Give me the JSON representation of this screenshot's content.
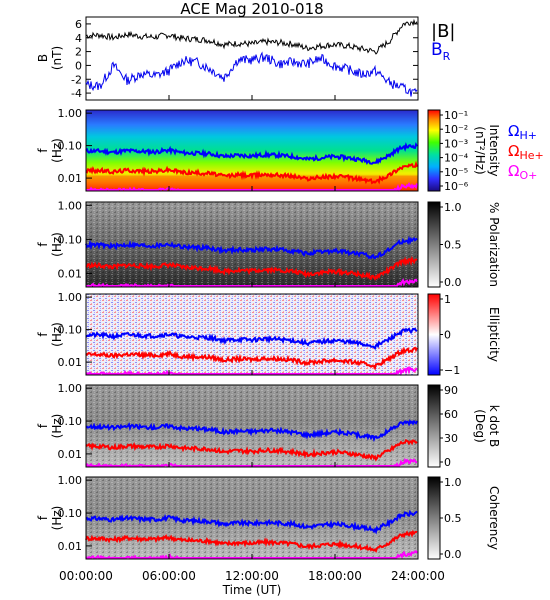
{
  "title": "ACE Mag 2010-018",
  "chart_data": [
    {
      "type": "line",
      "panel": "magnetic-field",
      "ylabel": "B",
      "yunit": "(nT)",
      "ylim": [
        -5,
        7
      ],
      "yticks": [
        6,
        4,
        2,
        0,
        -2,
        -4
      ],
      "series": [
        {
          "name": "|B|",
          "color": "#000000",
          "x": [
            0,
            1,
            2,
            3,
            4,
            5,
            6,
            7,
            8,
            9,
            10,
            11,
            12,
            13,
            14,
            15,
            16,
            17,
            18,
            19,
            20,
            21,
            22,
            23,
            24
          ],
          "y": [
            4.3,
            4.4,
            4.0,
            4.5,
            4.2,
            4.1,
            4.4,
            3.9,
            3.8,
            3.6,
            3.0,
            3.2,
            3.1,
            3.4,
            3.3,
            3.1,
            2.5,
            2.8,
            3.0,
            2.8,
            2.4,
            2.0,
            3.5,
            6.0,
            6.5
          ]
        },
        {
          "name": "B",
          "subscript": "R",
          "color": "#0000ee",
          "x": [
            0,
            1,
            2,
            3,
            4,
            5,
            6,
            7,
            8,
            9,
            10,
            11,
            12,
            13,
            14,
            15,
            16,
            17,
            18,
            19,
            20,
            21,
            22,
            23,
            24
          ],
          "y": [
            -2.8,
            -3.0,
            0.0,
            -2.2,
            -1.2,
            -1.5,
            -0.8,
            0.7,
            0.5,
            -0.5,
            -1.8,
            0.8,
            0.8,
            1.2,
            0.2,
            0.5,
            0.2,
            1.0,
            0.0,
            -0.6,
            -1.3,
            -0.8,
            -2.5,
            -3.3,
            -4.2
          ]
        }
      ]
    },
    {
      "type": "heatmap",
      "panel": "intensity",
      "ylabel": "f",
      "yunit": "(Hz)",
      "yscale": "log",
      "ylim": [
        0.004,
        1.0
      ],
      "yticks": [
        "1.00",
        "0.10",
        "0.01"
      ],
      "colorbar": {
        "label": "Intensity",
        "unit": "(nT²/Hz)",
        "scale": "log",
        "ticks": [
          "10⁻¹",
          "10⁻²",
          "10⁻³",
          "10⁻⁴",
          "10⁻⁵",
          "10⁻⁶"
        ],
        "colormap": "rainbow"
      }
    },
    {
      "type": "heatmap",
      "panel": "polarization",
      "ylabel": "f",
      "yunit": "(Hz)",
      "yscale": "log",
      "colorbar": {
        "label": "% Polarization",
        "ticks": [
          "1.0",
          "0.5",
          "0.0"
        ],
        "colormap": "grayscale"
      }
    },
    {
      "type": "heatmap",
      "panel": "ellipticity",
      "ylabel": "f",
      "yunit": "(Hz)",
      "yscale": "log",
      "colorbar": {
        "label": "Ellipticity",
        "ticks": [
          "1",
          "0",
          "−1"
        ],
        "colormap": "blue-white-red"
      }
    },
    {
      "type": "heatmap",
      "panel": "wave-normal-angle",
      "ylabel": "f",
      "yunit": "(Hz)",
      "yscale": "log",
      "colorbar": {
        "label": "k dot B",
        "unit": "(Deg)",
        "ticks": [
          "90",
          "60",
          "30",
          "0"
        ],
        "colormap": "grayscale"
      }
    },
    {
      "type": "heatmap",
      "panel": "coherency",
      "ylabel": "f",
      "yunit": "(Hz)",
      "yscale": "log",
      "colorbar": {
        "label": "Coherency",
        "ticks": [
          "1.0",
          "0.5",
          "0.0"
        ],
        "colormap": "grayscale"
      }
    }
  ],
  "gyro_lines": [
    {
      "name": "H+",
      "color": "#0000ff",
      "x": [
        0,
        1,
        2,
        3,
        4,
        5,
        6,
        7,
        8,
        9,
        10,
        11,
        12,
        13,
        14,
        15,
        16,
        17,
        18,
        19,
        20,
        21,
        22,
        23,
        24
      ],
      "f": [
        0.068,
        0.068,
        0.062,
        0.07,
        0.066,
        0.064,
        0.072,
        0.06,
        0.058,
        0.056,
        0.046,
        0.05,
        0.048,
        0.052,
        0.05,
        0.046,
        0.038,
        0.042,
        0.046,
        0.042,
        0.036,
        0.03,
        0.05,
        0.09,
        0.098
      ]
    },
    {
      "name": "He+",
      "color": "#ff0000",
      "x": [
        0,
        1,
        2,
        3,
        4,
        5,
        6,
        7,
        8,
        9,
        10,
        11,
        12,
        13,
        14,
        15,
        16,
        17,
        18,
        19,
        20,
        21,
        22,
        23,
        24
      ],
      "f": [
        0.017,
        0.017,
        0.0155,
        0.0175,
        0.0165,
        0.016,
        0.018,
        0.015,
        0.0145,
        0.014,
        0.0115,
        0.0125,
        0.012,
        0.013,
        0.0125,
        0.0115,
        0.0095,
        0.0105,
        0.0115,
        0.0105,
        0.009,
        0.0075,
        0.0125,
        0.0225,
        0.0245
      ]
    },
    {
      "name": "O+",
      "color": "#ff00ff",
      "x": [
        0,
        1,
        2,
        3,
        4,
        5,
        6,
        7,
        8,
        9,
        10,
        11,
        12,
        13,
        14,
        15,
        16,
        17,
        18,
        19,
        20,
        21,
        22,
        23,
        24
      ],
      "f": [
        0.0043,
        0.0043,
        0.0039,
        0.0044,
        0.0041,
        0.004,
        0.0045,
        0.0038,
        0.0037,
        0.0035,
        0.003,
        0.0032,
        0.0031,
        0.0033,
        0.0032,
        0.003,
        0.0026,
        0.0028,
        0.003,
        0.0028,
        0.0025,
        0.0022,
        0.0032,
        0.0056,
        0.0061
      ]
    }
  ],
  "legend": {
    "B_total": "|B|",
    "B_R_main": "B",
    "B_R_sub": "R",
    "omega": "Ω",
    "H": "H+",
    "He": "He+",
    "O": "O+"
  },
  "xaxis": {
    "label": "Time (UT)",
    "ticks": [
      "00:00:00",
      "06:00:00",
      "12:00:00",
      "18:00:00",
      "24:00:00"
    ],
    "tick_hours": [
      0,
      6,
      12,
      18,
      24
    ]
  },
  "colors": {
    "HPlus": "#0000ff",
    "HePlus": "#ff0000",
    "OPlus": "#ff00ff"
  }
}
